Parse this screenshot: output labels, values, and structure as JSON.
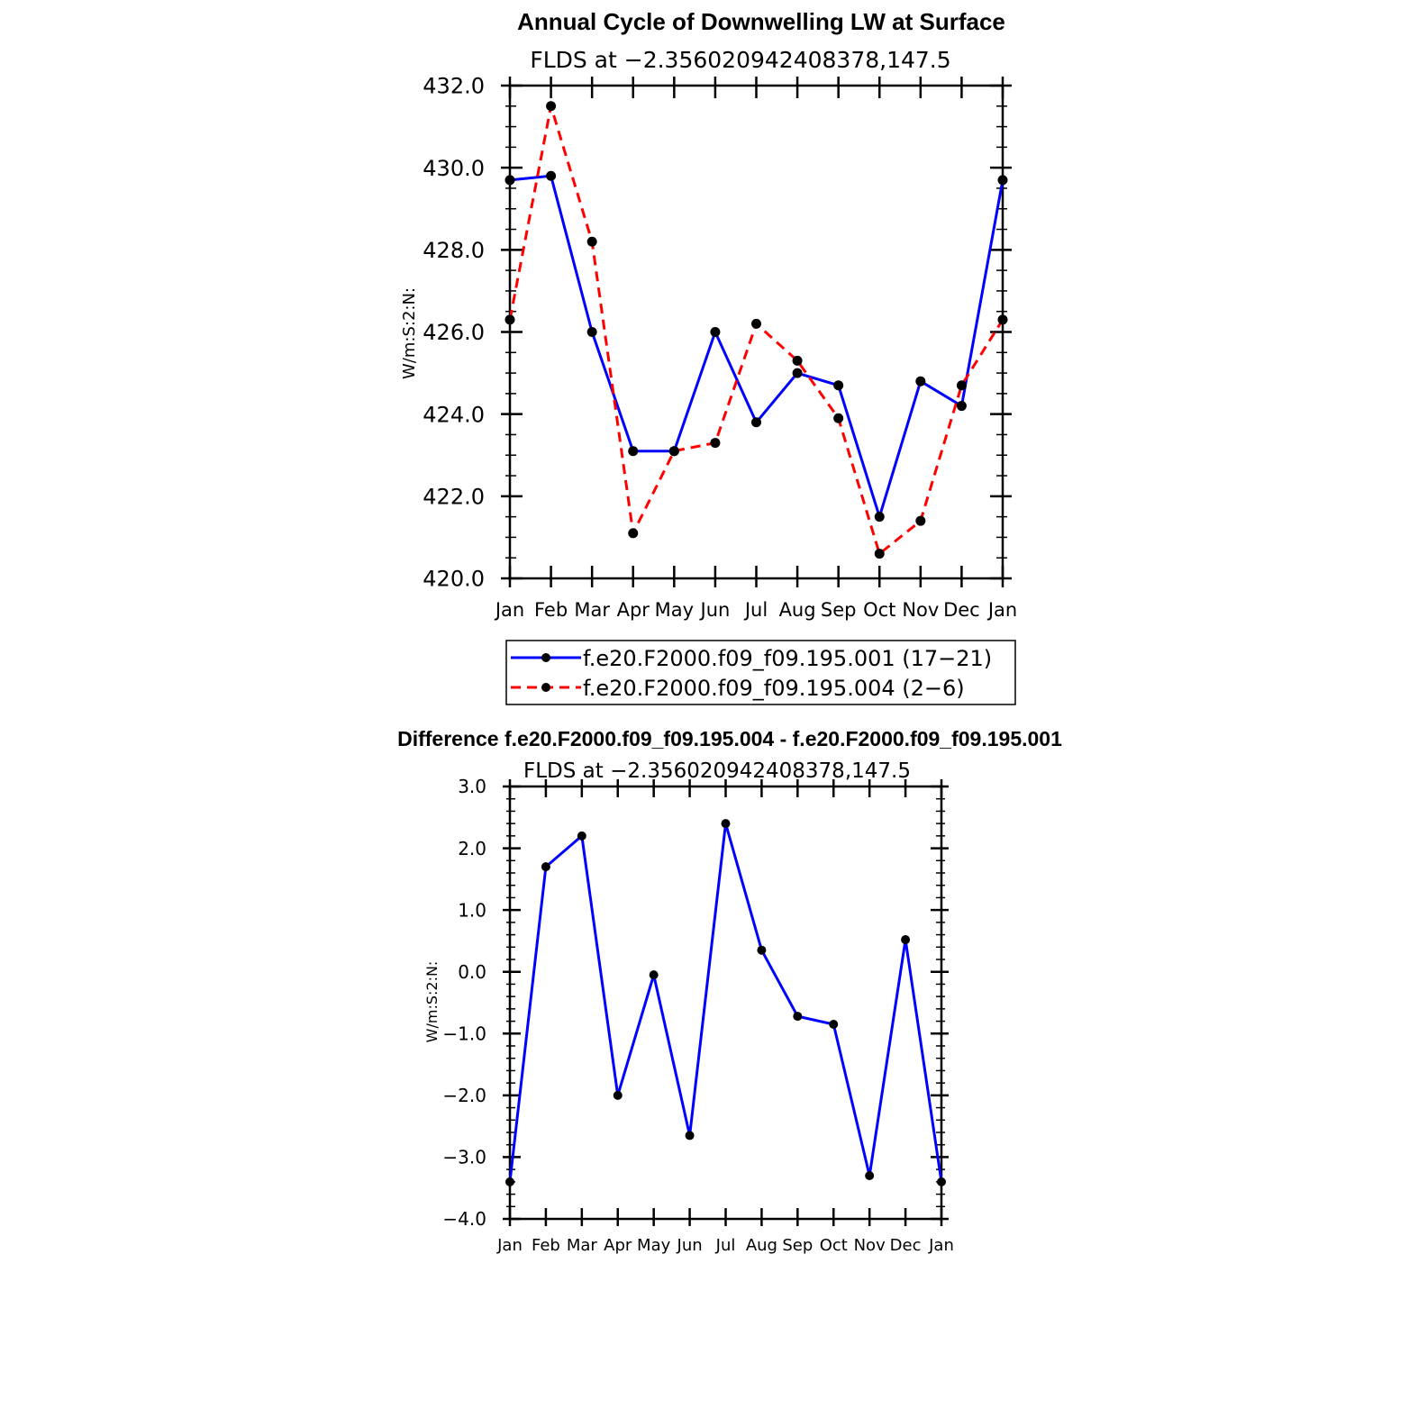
{
  "chart_data": [
    {
      "type": "line",
      "title": "Annual Cycle of Downwelling LW at Surface",
      "subtitle": "FLDS at −2.356020942408378,147.5",
      "xlabel": "",
      "ylabel": "W/m:S:2:N:",
      "categories": [
        "Jan",
        "Feb",
        "Mar",
        "Apr",
        "May",
        "Jun",
        "Jul",
        "Aug",
        "Sep",
        "Oct",
        "Nov",
        "Dec",
        "Jan"
      ],
      "yticks": [
        "420.0",
        "422.0",
        "424.0",
        "426.0",
        "428.0",
        "430.0",
        "432.0"
      ],
      "ylim": [
        420,
        432
      ],
      "legend_position": "bottom",
      "series": [
        {
          "name": "f.e20.F2000.f09_f09.195.001 (17−21)",
          "color": "#0000ff",
          "dash": "solid",
          "values": [
            429.7,
            429.8,
            426.0,
            423.1,
            423.1,
            426.0,
            423.8,
            425.0,
            424.7,
            421.5,
            424.8,
            424.2,
            429.7
          ]
        },
        {
          "name": "f.e20.F2000.f09_f09.195.004 (2−6)",
          "color": "#ff0000",
          "dash": "dashed",
          "values": [
            426.3,
            431.5,
            428.2,
            421.1,
            423.1,
            423.3,
            426.2,
            425.3,
            423.9,
            420.6,
            421.4,
            424.7,
            426.3
          ]
        }
      ]
    },
    {
      "type": "line",
      "title": "Difference f.e20.F2000.f09_f09.195.004 - f.e20.F2000.f09_f09.195.001",
      "subtitle": "FLDS at −2.356020942408378,147.5",
      "xlabel": "",
      "ylabel": "W/m:S:2:N:",
      "categories": [
        "Jan",
        "Feb",
        "Mar",
        "Apr",
        "May",
        "Jun",
        "Jul",
        "Aug",
        "Sep",
        "Oct",
        "Nov",
        "Dec",
        "Jan"
      ],
      "yticks": [
        "−4.0",
        "−3.0",
        "−2.0",
        "−1.0",
        "0.0",
        "1.0",
        "2.0",
        "3.0"
      ],
      "ylim": [
        -4,
        3
      ],
      "series": [
        {
          "name": "",
          "color": "#0000ff",
          "dash": "solid",
          "values": [
            -3.4,
            1.7,
            2.2,
            -2.0,
            -0.05,
            -2.65,
            2.4,
            0.35,
            -0.72,
            -0.85,
            -3.3,
            0.52,
            -3.4
          ]
        }
      ]
    }
  ]
}
